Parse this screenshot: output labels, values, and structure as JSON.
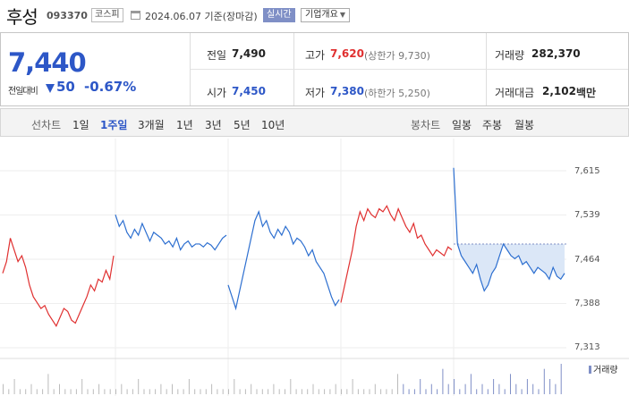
{
  "header": {
    "name": "후성",
    "code": "093370",
    "market": "코스피",
    "date": "2024.06.07 기준(장마감)",
    "realtime": "실시간",
    "company_info": "기업개요"
  },
  "summary": {
    "price": "7,440",
    "change_label": "전일대비",
    "change": "50",
    "change_pct": "-0.67%",
    "prev_label": "전일",
    "prev": "7,490",
    "high_label": "고가",
    "high": "7,620",
    "upper_limit": "(상한가 9,730)",
    "volume_label": "거래량",
    "volume": "282,370",
    "open_label": "시가",
    "open": "7,450",
    "low_label": "저가",
    "low": "7,380",
    "lower_limit": "(하한가 5,250)",
    "amount_label": "거래대금",
    "amount": "2,102",
    "amount_unit": "백만"
  },
  "toolbar": {
    "line_label": "선차트",
    "periods": [
      "1일",
      "1주일",
      "3개월",
      "1년",
      "3년",
      "5년",
      "10년"
    ],
    "selected_period": "1주일",
    "candle_label": "봉차트",
    "candles": [
      "일봉",
      "주봉",
      "월봉"
    ]
  },
  "colors": {
    "up": "#e03030",
    "down": "#2d6fd0",
    "accent": "#2d57c7"
  },
  "chart_data": {
    "type": "line",
    "y_ticks": [
      "7,615",
      "7,539",
      "7,464",
      "7,388",
      "7,313"
    ],
    "ylim": [
      7313,
      7615
    ],
    "reference_price": 7490,
    "volume_label": "거래량",
    "days": [
      {
        "prices": [
          7440,
          7460,
          7500,
          7480,
          7460,
          7470,
          7450,
          7420,
          7400,
          7390,
          7380,
          7385,
          7370,
          7360,
          7350,
          7365,
          7380,
          7375,
          7360,
          7355,
          7370,
          7385,
          7400,
          7420,
          7410,
          7430,
          7425,
          7445,
          7430,
          7470
        ]
      },
      {
        "prices": [
          7540,
          7520,
          7530,
          7510,
          7500,
          7515,
          7505,
          7525,
          7510,
          7495,
          7510,
          7505,
          7500,
          7490,
          7495,
          7485,
          7500,
          7480,
          7490,
          7495,
          7485,
          7490,
          7490,
          7485,
          7492,
          7488,
          7480,
          7490,
          7500,
          7505
        ]
      },
      {
        "prices": [
          7420,
          7400,
          7380,
          7410,
          7440,
          7470,
          7500,
          7530,
          7545,
          7520,
          7530,
          7510,
          7500,
          7515,
          7505,
          7520,
          7510,
          7490,
          7500,
          7495,
          7485,
          7470,
          7480,
          7460,
          7450,
          7440,
          7420,
          7400,
          7385,
          7395
        ]
      },
      {
        "prices": [
          7390,
          7420,
          7450,
          7480,
          7520,
          7545,
          7530,
          7550,
          7540,
          7535,
          7550,
          7545,
          7555,
          7540,
          7530,
          7550,
          7535,
          7520,
          7510,
          7525,
          7500,
          7505,
          7490,
          7480,
          7470,
          7480,
          7475,
          7470,
          7485,
          7480
        ]
      },
      {
        "prices": [
          7620,
          7490,
          7470,
          7460,
          7450,
          7440,
          7455,
          7430,
          7410,
          7420,
          7440,
          7450,
          7470,
          7490,
          7480,
          7470,
          7465,
          7470,
          7455,
          7460,
          7450,
          7440,
          7450,
          7445,
          7440,
          7430,
          7450,
          7435,
          7430,
          7440
        ]
      }
    ],
    "volume": [
      2,
      1,
      3,
      1,
      1,
      2,
      1,
      1,
      4,
      1,
      2,
      1,
      1,
      1,
      3,
      1,
      1,
      2,
      1,
      1,
      1,
      2,
      1,
      1,
      3,
      1,
      1,
      1,
      2,
      1,
      2,
      1,
      1,
      3,
      1,
      1,
      1,
      2,
      1,
      1,
      1,
      3,
      1,
      1,
      2,
      1,
      1,
      1,
      2,
      1,
      1,
      3,
      1,
      1,
      1,
      2,
      1,
      1,
      1,
      2,
      1,
      1,
      3,
      1,
      1,
      1,
      2,
      1,
      1,
      1,
      4,
      2,
      1,
      1,
      3,
      1,
      2,
      1,
      5,
      2,
      3,
      1,
      2,
      4,
      1,
      2,
      1,
      3,
      2,
      1,
      4,
      2,
      1,
      3,
      2,
      1,
      5,
      3,
      2,
      6
    ]
  }
}
